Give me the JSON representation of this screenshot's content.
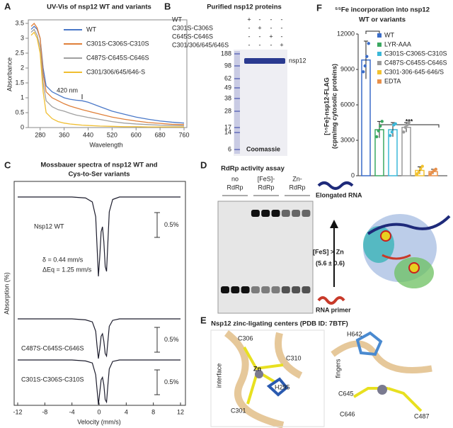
{
  "panel_labels": [
    "A",
    "B",
    "C",
    "D",
    "E",
    "F"
  ],
  "chart_data": [
    {
      "type": "line",
      "title": "UV-Vis of nsp12 WT and variants",
      "xlabel": "Wavelength",
      "ylabel": "Absorbance",
      "x": [
        250,
        260,
        270,
        280,
        290,
        300,
        320,
        340,
        360,
        380,
        400,
        420,
        440,
        480,
        520,
        560,
        600,
        640,
        680,
        720,
        760
      ],
      "series": [
        {
          "name": "WT",
          "color": "#4a78c8",
          "values": [
            3.3,
            3.4,
            3.3,
            3.0,
            2.0,
            1.4,
            1.2,
            1.1,
            1.0,
            0.95,
            0.92,
            0.9,
            0.85,
            0.7,
            0.55,
            0.45,
            0.35,
            0.28,
            0.22,
            0.18,
            0.15
          ]
        },
        {
          "name": "C301S-C306S-C310S",
          "color": "#e0803a",
          "values": [
            3.4,
            3.5,
            3.35,
            3.0,
            1.8,
            1.2,
            1.0,
            0.9,
            0.8,
            0.72,
            0.66,
            0.6,
            0.55,
            0.45,
            0.35,
            0.28,
            0.22,
            0.17,
            0.14,
            0.11,
            0.1
          ]
        },
        {
          "name": "C487S-C645S-C646S",
          "color": "#a0a0a0",
          "values": [
            3.2,
            3.3,
            3.1,
            2.7,
            1.5,
            0.9,
            0.7,
            0.6,
            0.55,
            0.48,
            0.42,
            0.38,
            0.34,
            0.27,
            0.2,
            0.15,
            0.12,
            0.1,
            0.08,
            0.07,
            0.06
          ]
        },
        {
          "name": "C301/306/645/646-S",
          "color": "#f0be30",
          "values": [
            3.1,
            3.2,
            3.0,
            2.5,
            1.2,
            0.5,
            0.3,
            0.2,
            0.15,
            0.12,
            0.1,
            0.08,
            0.07,
            0.05,
            0.04,
            0.03,
            0.03,
            0.02,
            0.02,
            0.02,
            0.02
          ]
        }
      ],
      "xlim": [
        250,
        760
      ],
      "xticks": [
        280,
        360,
        440,
        520,
        600,
        680,
        760
      ],
      "ylim": [
        0,
        3.5
      ],
      "yticks": [
        0,
        0.5,
        1,
        1.5,
        2,
        2.5,
        3,
        3.5
      ],
      "annotation": "420 nm"
    },
    {
      "type": "spectrum",
      "title": [
        "Mossbauer spectra of nsp12 WT and",
        "Cys-to-Ser variants"
      ],
      "xlabel": "Velocity (mm/s)",
      "ylabel": "Absorption (%)",
      "x": [
        -12,
        -8,
        -4,
        -2,
        -1,
        -0.5,
        -0.3,
        -0.1,
        0.1,
        0.3,
        0.5,
        0.7,
        0.9,
        1.1,
        1.3,
        1.5,
        2,
        3,
        4,
        8,
        12
      ],
      "series": [
        {
          "name": "Nsp12 WT",
          "color": "#1c1c2c",
          "values": [
            0,
            0,
            0,
            -0.02,
            -0.1,
            -0.4,
            -1.0,
            -1.6,
            -1.2,
            -0.7,
            -0.6,
            -0.9,
            -1.4,
            -1.5,
            -0.9,
            -0.3,
            -0.05,
            0,
            0,
            0,
            0
          ]
        },
        {
          "name": "C487S-C645S-C646S",
          "color": "#1c1c2c",
          "values": [
            0,
            0,
            0,
            -0.02,
            -0.06,
            -0.25,
            -0.55,
            -0.8,
            -0.6,
            -0.35,
            -0.3,
            -0.45,
            -0.7,
            -0.75,
            -0.45,
            -0.15,
            -0.03,
            0,
            0,
            0,
            0
          ]
        },
        {
          "name": "C301S-C306S-C310S",
          "color": "#1c1c2c",
          "values": [
            0,
            0,
            0,
            -0.02,
            -0.06,
            -0.3,
            -0.6,
            -0.9,
            -0.65,
            -0.4,
            -0.35,
            -0.5,
            -0.8,
            -0.85,
            -0.5,
            -0.18,
            -0.03,
            0,
            0,
            0,
            0
          ]
        }
      ],
      "xlim": [
        -12,
        12
      ],
      "xticks": [
        -12,
        -8,
        -4,
        0,
        4,
        8,
        12
      ],
      "scale_bar": 0.5,
      "scale_bar_label": "0.5%",
      "annotations": [
        "δ = 0.44 mm/s",
        "ΔEq = 1.25 mm/s"
      ]
    },
    {
      "type": "bar",
      "title": [
        "⁵⁵Fe incorporation into nsp12",
        "WT or variants"
      ],
      "ylabel": [
        "[⁵⁵Fe]-nsp12-FLAG",
        "(cpm/mg cytosolic proteins)"
      ],
      "categories": [
        "WT",
        "LYR-AAA",
        "C301S-C306S-C310S",
        "C487S-C645S-C646S",
        "C301-306-645-646/S",
        "EDTA"
      ],
      "values": [
        9800,
        3900,
        3900,
        4100,
        450,
        350
      ],
      "errors": [
        1600,
        700,
        600,
        400,
        300,
        200
      ],
      "points": [
        [
          8800,
          9300,
          10100,
          11200
        ],
        [
          3300,
          3800,
          4200,
          4600
        ],
        [
          3400,
          3700,
          4300,
          4400
        ],
        [
          3700,
          4100,
          4300,
          4500
        ],
        [
          150,
          300,
          600,
          800
        ],
        [
          150,
          300,
          450,
          550
        ]
      ],
      "colors": [
        "#3a6cc8",
        "#3aa860",
        "#3bb8d8",
        "#9a9a9a",
        "#f2c230",
        "#e8904a"
      ],
      "ylim": [
        0,
        12000
      ],
      "yticks": [
        0,
        3000,
        6000,
        9000,
        12000
      ],
      "annotation": "***"
    }
  ],
  "gel_b": {
    "title": "Purified nsp12 proteins",
    "rows": [
      {
        "label": "WT",
        "signs": [
          "+",
          "-",
          "-",
          "-"
        ]
      },
      {
        "label": "C301S-C306S",
        "signs": [
          "-",
          "+",
          "-",
          "-"
        ]
      },
      {
        "label": "C645S-C646S",
        "signs": [
          "-",
          "-",
          "+",
          "-"
        ]
      },
      {
        "label": "C301/306/645/646S",
        "signs": [
          "-",
          "-",
          "-",
          "+"
        ]
      }
    ],
    "ladder": [
      188,
      98,
      62,
      49,
      38,
      28,
      17,
      14,
      6
    ],
    "band_label": "nsp12",
    "stain": "Coomassie"
  },
  "gel_d": {
    "title": "RdRp activity assay",
    "lanes": [
      [
        "no",
        "RdRp"
      ],
      [
        "[FeS]-",
        "RdRp"
      ],
      [
        "Zn-",
        "RdRp"
      ]
    ],
    "elongated": "Elongated RNA",
    "primer": "RNA primer",
    "comparison": "[FeS] > Zn",
    "ratio": "(5.6 ± 0.6)"
  },
  "structure_e": {
    "title": "Nsp12 zinc-ligating centers (PDB ID: 7BTF)",
    "left": {
      "region": "interface",
      "labels": [
        "C306",
        "C310",
        "Zn",
        "H295",
        "C301"
      ]
    },
    "right": {
      "region": "fingers",
      "labels": [
        "H642",
        "C645",
        "C646",
        "C487"
      ]
    }
  }
}
